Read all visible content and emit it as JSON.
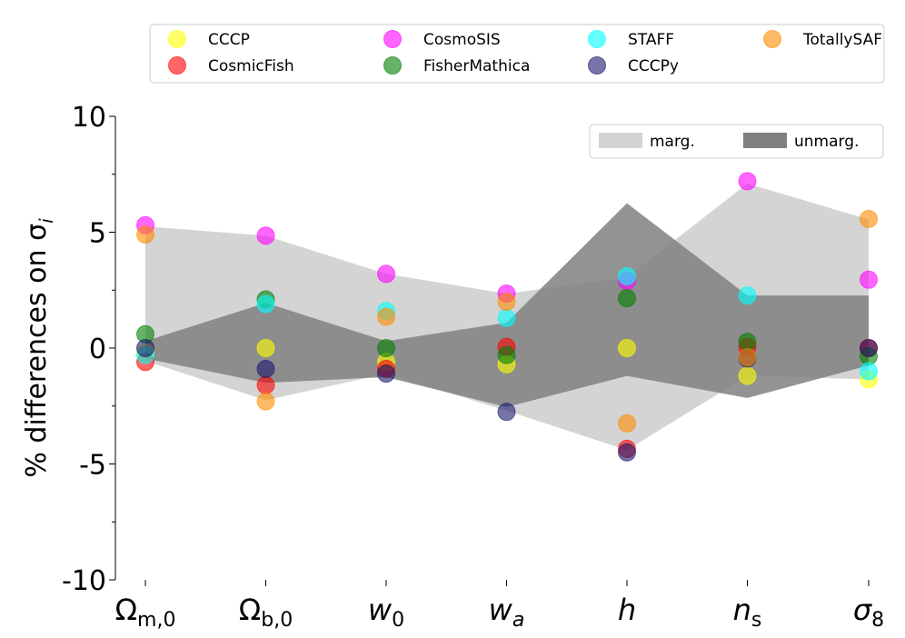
{
  "chart_data": {
    "type": "scatter",
    "title": "",
    "xlabel": "",
    "ylabel": "% differences on σ",
    "ylabel_sub": "i",
    "ylim": [
      -10,
      10
    ],
    "yticks": [
      -10,
      -5,
      0,
      5,
      10
    ],
    "ytick_labels": [
      "-10",
      "-5",
      "0",
      "5",
      "10"
    ],
    "categories": [
      {
        "main": "Ω",
        "sub": "m,0",
        "italic": false
      },
      {
        "main": "Ω",
        "sub": "b,0",
        "italic": false
      },
      {
        "main": "w",
        "sub": "0",
        "italic": true
      },
      {
        "main": "w",
        "sub": "a",
        "italic": true,
        "sub_italic": true
      },
      {
        "main": "h",
        "sub": "",
        "italic": true
      },
      {
        "main": "n",
        "sub": "s",
        "italic": true
      },
      {
        "main": "σ",
        "sub": "8",
        "italic": true
      }
    ],
    "series": [
      {
        "name": "CCCP",
        "color": "#ffff00",
        "values": [
          -0.2,
          0.0,
          -0.6,
          -0.7,
          0.0,
          -1.2,
          -1.35
        ]
      },
      {
        "name": "CosmicFish",
        "color": "#ff0000",
        "values": [
          -0.6,
          -1.6,
          -0.9,
          0.05,
          -4.35,
          0.05,
          0.0
        ]
      },
      {
        "name": "CosmoSIS",
        "color": "#ff00ff",
        "values": [
          5.3,
          4.85,
          3.2,
          2.35,
          2.9,
          7.2,
          2.95
        ]
      },
      {
        "name": "FisherMathica",
        "color": "#008000",
        "values": [
          0.6,
          2.1,
          0.0,
          -0.3,
          2.15,
          0.27,
          -0.35
        ]
      },
      {
        "name": "STAFF",
        "color": "#00ffff",
        "values": [
          -0.3,
          1.9,
          1.6,
          1.3,
          3.1,
          2.27,
          -1.0
        ]
      },
      {
        "name": "CCCPy",
        "color": "#191970",
        "values": [
          0.0,
          -0.9,
          -1.1,
          -2.75,
          -4.5,
          -0.45,
          0.0
        ]
      },
      {
        "name": "TotallySAF",
        "color": "#ff8c00",
        "values": [
          4.9,
          -2.3,
          1.35,
          2.0,
          -3.25,
          -0.4,
          5.57
        ]
      }
    ],
    "bands": [
      {
        "name": "marg.",
        "color": "#d3d3d3",
        "upper": [
          5.25,
          4.85,
          3.2,
          2.35,
          3.05,
          7.1,
          5.55
        ],
        "lower": [
          -0.55,
          -2.25,
          -1.1,
          -2.7,
          -4.4,
          -1.2,
          -1.35
        ]
      },
      {
        "name": "unmarg.",
        "color": "#808080",
        "upper": [
          0.3,
          1.95,
          0.3,
          1.1,
          6.25,
          2.27,
          2.27
        ],
        "lower": [
          -0.45,
          -1.5,
          -1.25,
          -2.55,
          -1.2,
          -2.15,
          -0.75
        ]
      }
    ],
    "legend_placement": "top-outside",
    "band_legend_placement": "top-right"
  }
}
